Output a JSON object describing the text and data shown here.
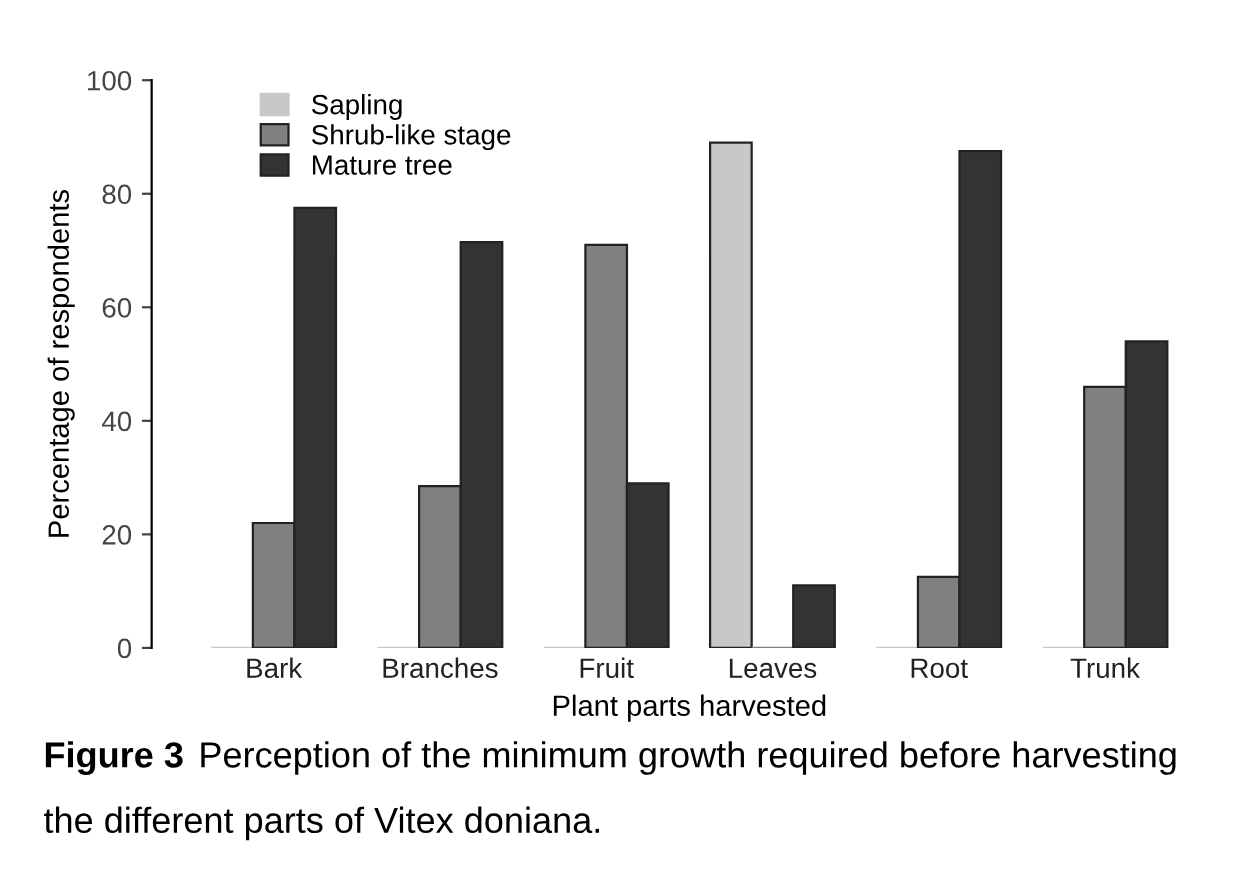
{
  "chart_data": {
    "type": "bar",
    "xlabel": "Plant parts harvested",
    "ylabel": "Percentage of respondents",
    "categories": [
      "Bark",
      "Branches",
      "Fruit",
      "Leaves",
      "Root",
      "Trunk"
    ],
    "series": [
      {
        "name": "Sapling",
        "color": "#c8c8c8",
        "values": [
          0,
          0,
          0,
          89,
          0,
          0
        ]
      },
      {
        "name": "Shrub-like stage",
        "color": "#808080",
        "values": [
          22,
          28.5,
          71,
          0,
          12.5,
          46
        ]
      },
      {
        "name": "Mature tree",
        "color": "#333333",
        "values": [
          77.5,
          71.5,
          29,
          11,
          87.5,
          54
        ]
      }
    ],
    "ylim": [
      0,
      100
    ],
    "yticks": [
      0,
      20,
      40,
      60,
      80,
      100
    ],
    "grid": false,
    "legend": "top left",
    "annotations": [
      "Figure 3",
      "Perception of the minimum growth required before harvesting the different parts of Vitex doniana."
    ]
  }
}
